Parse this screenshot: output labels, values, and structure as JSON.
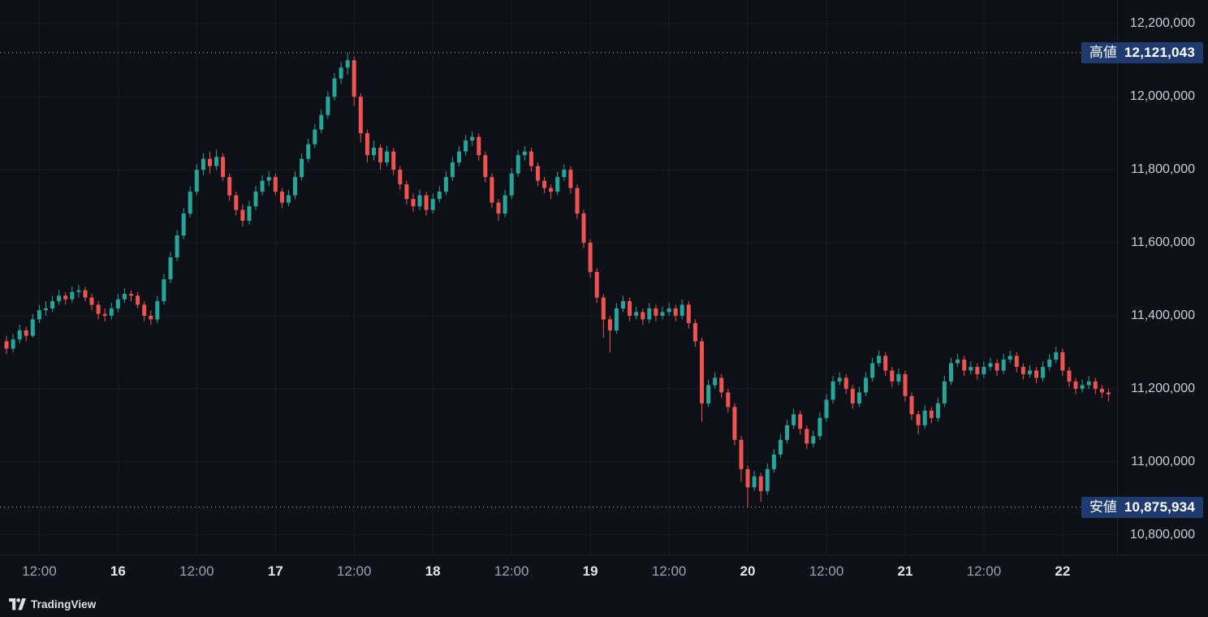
{
  "watermark": {
    "text": "TradingView"
  },
  "price_labels": {
    "high": {
      "label": "高値",
      "display": "12,121,043",
      "value": 12121043
    },
    "low": {
      "label": "安値",
      "display": "10,875,934",
      "value": 10875934
    }
  },
  "colors": {
    "background": "#0d1016",
    "up": "#26a69a",
    "down": "#ef5350",
    "grid": "rgba(255,255,255,0.055)",
    "dotted_line": "#b6bac5",
    "axis_text": "#c9cdd6",
    "label_bg": "#1e3a6e",
    "label_text": "#ffffff"
  },
  "chart_data": {
    "type": "candlestick",
    "interval": "1h",
    "price_multiplier": 1000,
    "candle_format": "[open, high, low, close] in units of price_multiplier JPY",
    "high_annotation": {
      "label": "高値",
      "display": "12,121,043",
      "value": 12121043
    },
    "low_annotation": {
      "label": "安値",
      "display": "10,875,934",
      "value": 10875934
    },
    "y_axis": {
      "tick_labels": [
        "12,200,000",
        "12,000,000",
        "11,800,000",
        "11,600,000",
        "11,400,000",
        "11,200,000",
        "11,000,000",
        "10,800,000"
      ],
      "tick_values": [
        12200000,
        12000000,
        11800000,
        11600000,
        11400000,
        11200000,
        11000000,
        10800000
      ],
      "top_price": 12265000,
      "bottom_price": 10746000
    },
    "x_axis": {
      "ticks": [
        {
          "index": 5,
          "label": "12:00",
          "major": false
        },
        {
          "index": 17,
          "label": "16",
          "major": true
        },
        {
          "index": 29,
          "label": "12:00",
          "major": false
        },
        {
          "index": 41,
          "label": "17",
          "major": true
        },
        {
          "index": 53,
          "label": "12:00",
          "major": false
        },
        {
          "index": 65,
          "label": "18",
          "major": true
        },
        {
          "index": 77,
          "label": "12:00",
          "major": false
        },
        {
          "index": 89,
          "label": "19",
          "major": true
        },
        {
          "index": 101,
          "label": "12:00",
          "major": false
        },
        {
          "index": 113,
          "label": "20",
          "major": true
        },
        {
          "index": 125,
          "label": "12:00",
          "major": false
        },
        {
          "index": 137,
          "label": "21",
          "major": true
        },
        {
          "index": 149,
          "label": "12:00",
          "major": false
        },
        {
          "index": 161,
          "label": "22",
          "major": true
        }
      ]
    },
    "candles": [
      [
        11330,
        11345,
        11295,
        11310
      ],
      [
        11310,
        11350,
        11300,
        11335
      ],
      [
        11335,
        11375,
        11325,
        11360
      ],
      [
        11360,
        11370,
        11330,
        11345
      ],
      [
        11345,
        11405,
        11340,
        11390
      ],
      [
        11390,
        11430,
        11380,
        11415
      ],
      [
        11415,
        11440,
        11400,
        11420
      ],
      [
        11420,
        11455,
        11410,
        11440
      ],
      [
        11440,
        11470,
        11430,
        11455
      ],
      [
        11455,
        11465,
        11430,
        11445
      ],
      [
        11445,
        11480,
        11435,
        11465
      ],
      [
        11465,
        11485,
        11450,
        11470
      ],
      [
        11470,
        11480,
        11440,
        11450
      ],
      [
        11450,
        11460,
        11415,
        11430
      ],
      [
        11430,
        11440,
        11390,
        11405
      ],
      [
        11405,
        11420,
        11385,
        11400
      ],
      [
        11400,
        11435,
        11390,
        11420
      ],
      [
        11420,
        11460,
        11410,
        11445
      ],
      [
        11445,
        11475,
        11435,
        11460
      ],
      [
        11460,
        11470,
        11440,
        11455
      ],
      [
        11455,
        11465,
        11420,
        11430
      ],
      [
        11430,
        11440,
        11385,
        11400
      ],
      [
        11400,
        11415,
        11375,
        11390
      ],
      [
        11390,
        11455,
        11380,
        11440
      ],
      [
        11440,
        11515,
        11430,
        11500
      ],
      [
        11500,
        11575,
        11490,
        11560
      ],
      [
        11560,
        11635,
        11550,
        11620
      ],
      [
        11620,
        11695,
        11610,
        11680
      ],
      [
        11680,
        11755,
        11670,
        11740
      ],
      [
        11740,
        11815,
        11730,
        11800
      ],
      [
        11800,
        11845,
        11785,
        11830
      ],
      [
        11830,
        11850,
        11790,
        11810
      ],
      [
        11810,
        11855,
        11800,
        11835
      ],
      [
        11835,
        11845,
        11770,
        11780
      ],
      [
        11780,
        11790,
        11715,
        11730
      ],
      [
        11730,
        11740,
        11675,
        11690
      ],
      [
        11690,
        11705,
        11645,
        11660
      ],
      [
        11660,
        11715,
        11650,
        11700
      ],
      [
        11700,
        11755,
        11690,
        11740
      ],
      [
        11740,
        11785,
        11730,
        11770
      ],
      [
        11770,
        11795,
        11755,
        11780
      ],
      [
        11780,
        11790,
        11730,
        11740
      ],
      [
        11740,
        11750,
        11695,
        11710
      ],
      [
        11710,
        11745,
        11700,
        11730
      ],
      [
        11730,
        11795,
        11720,
        11780
      ],
      [
        11780,
        11845,
        11770,
        11830
      ],
      [
        11830,
        11885,
        11820,
        11870
      ],
      [
        11870,
        11925,
        11860,
        11910
      ],
      [
        11910,
        11965,
        11900,
        11950
      ],
      [
        11950,
        12015,
        11940,
        12000
      ],
      [
        12000,
        12065,
        11990,
        12050
      ],
      [
        12050,
        12095,
        12035,
        12080
      ],
      [
        12080,
        12121,
        12060,
        12100
      ],
      [
        12100,
        12110,
        11975,
        12000
      ],
      [
        12000,
        12010,
        11875,
        11900
      ],
      [
        11900,
        11910,
        11820,
        11840
      ],
      [
        11840,
        11880,
        11825,
        11860
      ],
      [
        11860,
        11870,
        11800,
        11820
      ],
      [
        11820,
        11865,
        11810,
        11850
      ],
      [
        11850,
        11860,
        11785,
        11800
      ],
      [
        11800,
        11810,
        11745,
        11760
      ],
      [
        11760,
        11770,
        11705,
        11720
      ],
      [
        11720,
        11735,
        11685,
        11700
      ],
      [
        11700,
        11745,
        11690,
        11730
      ],
      [
        11730,
        11740,
        11675,
        11690
      ],
      [
        11690,
        11735,
        11680,
        11720
      ],
      [
        11720,
        11755,
        11710,
        11740
      ],
      [
        11740,
        11795,
        11730,
        11780
      ],
      [
        11780,
        11835,
        11770,
        11820
      ],
      [
        11820,
        11865,
        11810,
        11850
      ],
      [
        11850,
        11895,
        11840,
        11880
      ],
      [
        11880,
        11905,
        11865,
        11890
      ],
      [
        11890,
        11900,
        11825,
        11840
      ],
      [
        11840,
        11850,
        11765,
        11780
      ],
      [
        11780,
        11790,
        11695,
        11710
      ],
      [
        11710,
        11720,
        11660,
        11680
      ],
      [
        11680,
        11745,
        11670,
        11730
      ],
      [
        11730,
        11805,
        11720,
        11790
      ],
      [
        11790,
        11855,
        11780,
        11840
      ],
      [
        11840,
        11865,
        11825,
        11850
      ],
      [
        11850,
        11860,
        11795,
        11810
      ],
      [
        11810,
        11820,
        11755,
        11770
      ],
      [
        11770,
        11780,
        11735,
        11750
      ],
      [
        11750,
        11760,
        11720,
        11740
      ],
      [
        11740,
        11795,
        11730,
        11780
      ],
      [
        11780,
        11815,
        11770,
        11800
      ],
      [
        11800,
        11810,
        11735,
        11750
      ],
      [
        11750,
        11760,
        11665,
        11680
      ],
      [
        11680,
        11690,
        11585,
        11600
      ],
      [
        11600,
        11610,
        11505,
        11520
      ],
      [
        11520,
        11530,
        11435,
        11450
      ],
      [
        11450,
        11460,
        11340,
        11390
      ],
      [
        11390,
        11400,
        11300,
        11360
      ],
      [
        11360,
        11435,
        11350,
        11420
      ],
      [
        11420,
        11455,
        11410,
        11440
      ],
      [
        11440,
        11450,
        11385,
        11400
      ],
      [
        11400,
        11425,
        11390,
        11410
      ],
      [
        11410,
        11420,
        11375,
        11390
      ],
      [
        11390,
        11435,
        11380,
        11420
      ],
      [
        11420,
        11430,
        11385,
        11400
      ],
      [
        11400,
        11425,
        11390,
        11410
      ],
      [
        11410,
        11435,
        11400,
        11420
      ],
      [
        11420,
        11430,
        11385,
        11400
      ],
      [
        11400,
        11445,
        11390,
        11430
      ],
      [
        11430,
        11440,
        11365,
        11380
      ],
      [
        11380,
        11390,
        11315,
        11330
      ],
      [
        11330,
        11340,
        11110,
        11160
      ],
      [
        11160,
        11225,
        11150,
        11210
      ],
      [
        11210,
        11245,
        11200,
        11230
      ],
      [
        11230,
        11240,
        11175,
        11190
      ],
      [
        11190,
        11200,
        11135,
        11150
      ],
      [
        11150,
        11160,
        11045,
        11060
      ],
      [
        11060,
        11070,
        10945,
        10980
      ],
      [
        10980,
        10990,
        10876,
        10930
      ],
      [
        10930,
        10975,
        10920,
        10960
      ],
      [
        10960,
        10970,
        10890,
        10920
      ],
      [
        10920,
        10995,
        10910,
        10980
      ],
      [
        10980,
        11035,
        10970,
        11020
      ],
      [
        11020,
        11075,
        11010,
        11060
      ],
      [
        11060,
        11115,
        11050,
        11100
      ],
      [
        11100,
        11145,
        11090,
        11130
      ],
      [
        11130,
        11140,
        11075,
        11090
      ],
      [
        11090,
        11100,
        11035,
        11050
      ],
      [
        11050,
        11085,
        11040,
        11070
      ],
      [
        11070,
        11135,
        11060,
        11120
      ],
      [
        11120,
        11185,
        11110,
        11170
      ],
      [
        11170,
        11235,
        11160,
        11220
      ],
      [
        11220,
        11245,
        11210,
        11230
      ],
      [
        11230,
        11240,
        11185,
        11200
      ],
      [
        11200,
        11210,
        11145,
        11160
      ],
      [
        11160,
        11205,
        11150,
        11190
      ],
      [
        11190,
        11245,
        11180,
        11230
      ],
      [
        11230,
        11285,
        11220,
        11270
      ],
      [
        11270,
        11305,
        11260,
        11290
      ],
      [
        11290,
        11300,
        11235,
        11250
      ],
      [
        11250,
        11260,
        11205,
        11220
      ],
      [
        11220,
        11255,
        11210,
        11240
      ],
      [
        11240,
        11250,
        11165,
        11180
      ],
      [
        11180,
        11190,
        11115,
        11130
      ],
      [
        11130,
        11140,
        11075,
        11100
      ],
      [
        11100,
        11155,
        11090,
        11140
      ],
      [
        11140,
        11150,
        11105,
        11120
      ],
      [
        11120,
        11175,
        11110,
        11160
      ],
      [
        11160,
        11235,
        11150,
        11220
      ],
      [
        11220,
        11285,
        11210,
        11270
      ],
      [
        11270,
        11295,
        11260,
        11280
      ],
      [
        11280,
        11290,
        11235,
        11250
      ],
      [
        11250,
        11275,
        11240,
        11260
      ],
      [
        11260,
        11270,
        11225,
        11240
      ],
      [
        11240,
        11275,
        11230,
        11260
      ],
      [
        11260,
        11285,
        11250,
        11270
      ],
      [
        11270,
        11280,
        11235,
        11250
      ],
      [
        11250,
        11295,
        11240,
        11280
      ],
      [
        11280,
        11305,
        11270,
        11290
      ],
      [
        11290,
        11300,
        11245,
        11260
      ],
      [
        11260,
        11270,
        11225,
        11240
      ],
      [
        11240,
        11265,
        11230,
        11250
      ],
      [
        11250,
        11260,
        11215,
        11230
      ],
      [
        11230,
        11275,
        11220,
        11260
      ],
      [
        11260,
        11295,
        11250,
        11280
      ],
      [
        11280,
        11315,
        11270,
        11300
      ],
      [
        11300,
        11310,
        11235,
        11250
      ],
      [
        11250,
        11260,
        11205,
        11220
      ],
      [
        11220,
        11230,
        11185,
        11200
      ],
      [
        11200,
        11225,
        11190,
        11210
      ],
      [
        11210,
        11235,
        11200,
        11220
      ],
      [
        11220,
        11230,
        11185,
        11200
      ],
      [
        11200,
        11210,
        11175,
        11190
      ],
      [
        11190,
        11200,
        11165,
        11185
      ]
    ]
  }
}
